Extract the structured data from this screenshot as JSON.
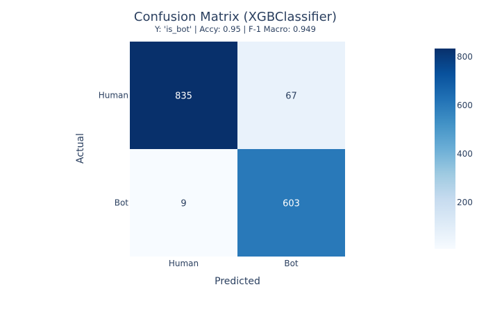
{
  "chart_data": {
    "type": "heatmap",
    "title": "Confusion Matrix (XGBClassifier)",
    "subtitle": "Y: 'is_bot' | Accy: 0.95 | F-1 Macro: 0.949",
    "xlabel": "Predicted",
    "ylabel": "Actual",
    "x_categories": [
      "Human",
      "Bot"
    ],
    "y_categories": [
      "Human",
      "Bot"
    ],
    "values": [
      [
        835,
        67
      ],
      [
        9,
        603
      ]
    ],
    "colorscale": "Blues",
    "colorbar": {
      "range": [
        9,
        835
      ],
      "ticks": [
        200,
        400,
        600,
        800
      ]
    }
  }
}
